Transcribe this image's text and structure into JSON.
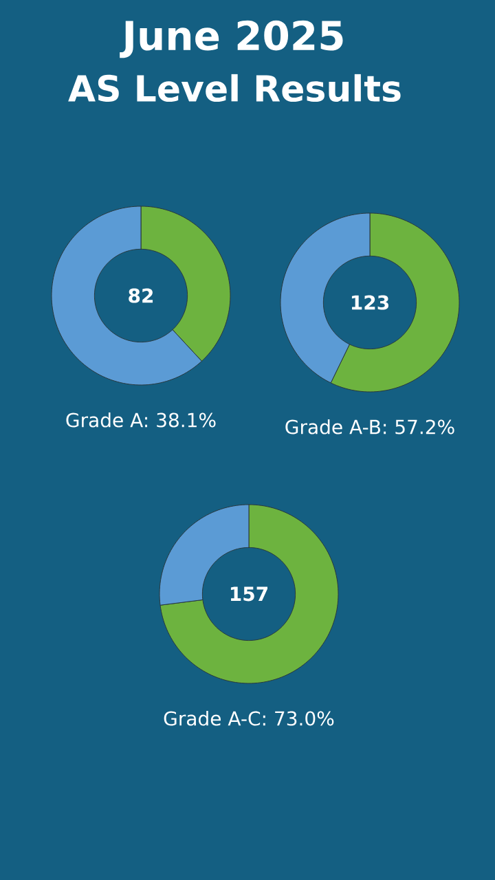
{
  "chart_data": [
    {
      "type": "donut",
      "title": "June 2025",
      "subtitle": "AS Level Results",
      "categories": [
        null,
        null
      ],
      "values": [
        38.1,
        61.9
      ],
      "colors": [
        "#6db33f",
        "#5b9bd5"
      ],
      "annotations": [
        "82",
        "Grade A: 38.1%"
      ]
    },
    {
      "type": "donut",
      "categories": [
        null,
        null
      ],
      "values": [
        57.2,
        42.8
      ],
      "colors": [
        "#6db33f",
        "#5b9bd5"
      ],
      "annotations": [
        "123",
        "Grade A-B: 57.2%"
      ]
    },
    {
      "type": "donut",
      "categories": [
        null,
        null
      ],
      "values": [
        73.0,
        27.0
      ],
      "colors": [
        "#6db33f",
        "#5b9bd5"
      ],
      "annotations": [
        "157",
        "Grade A-C: 73.0%"
      ]
    }
  ]
}
